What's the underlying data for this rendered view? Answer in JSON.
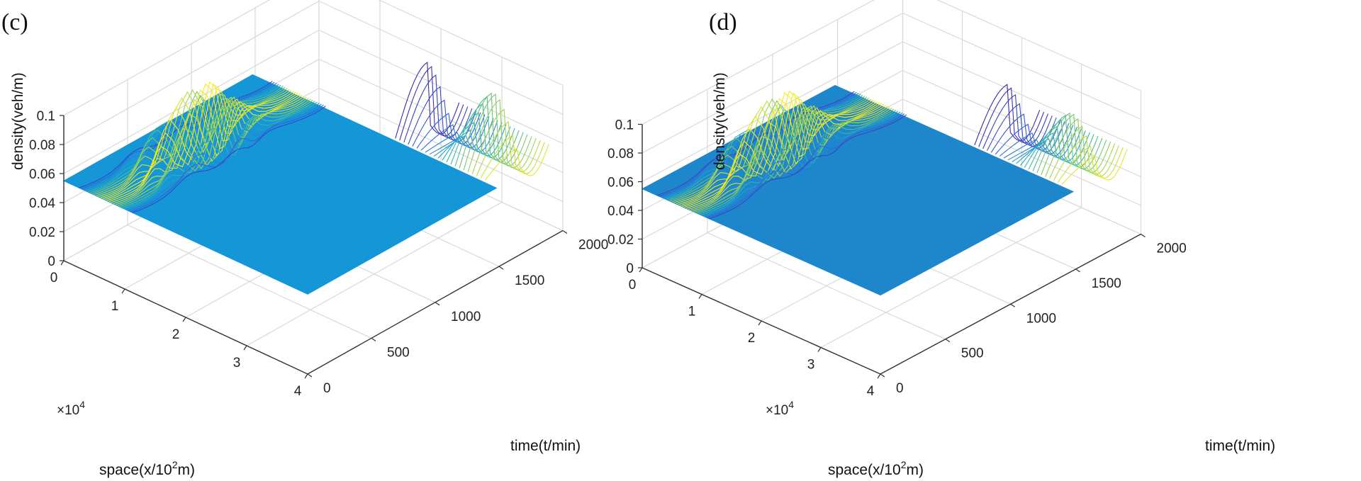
{
  "chart_data": [
    {
      "type": "surface",
      "panel_label": "(c)",
      "xlabel_prefix": "space(x/10",
      "xlabel_sup": "2",
      "xlabel_suffix": "m)",
      "ylabel": "time(t/min)",
      "zlabel": "density(veh/m)",
      "exponent_prefix": "×10",
      "exponent_sup": "4",
      "xlim": [
        0,
        4
      ],
      "ylim": [
        0,
        2000
      ],
      "zlim": [
        0,
        0.1
      ],
      "xticks": [
        "0",
        "1",
        "2",
        "3",
        "4"
      ],
      "yticks": [
        "0",
        "500",
        "1000",
        "1500",
        "2000"
      ],
      "zticks": [
        "0",
        "0.02",
        "0.04",
        "0.06",
        "0.08",
        "0.1"
      ],
      "base_density": 0.055,
      "ridge_peak_density": 0.1,
      "late_peak_density": 0.095
    },
    {
      "type": "surface",
      "panel_label": "(d)",
      "xlabel_prefix": "space(x/10",
      "xlabel_sup": "2",
      "xlabel_suffix": "m)",
      "ylabel": "time(t/min)",
      "zlabel": "density(veh/m)",
      "exponent_prefix": "×10",
      "exponent_sup": "4",
      "xlim": [
        0,
        4
      ],
      "ylim": [
        0,
        2000
      ],
      "zlim": [
        0,
        0.1
      ],
      "xticks": [
        "0",
        "1",
        "2",
        "3",
        "4"
      ],
      "yticks": [
        "0",
        "500",
        "1000",
        "1500",
        "2000"
      ],
      "zticks": [
        "0",
        "0.02",
        "0.04",
        "0.06",
        "0.08",
        "0.1"
      ],
      "base_density": 0.055,
      "ridge_peak_density": 0.1,
      "late_peak_density": 0.085
    }
  ],
  "colors": {
    "surface_fill_c": "#1596d6",
    "surface_fill_d": "#1e87cc"
  }
}
